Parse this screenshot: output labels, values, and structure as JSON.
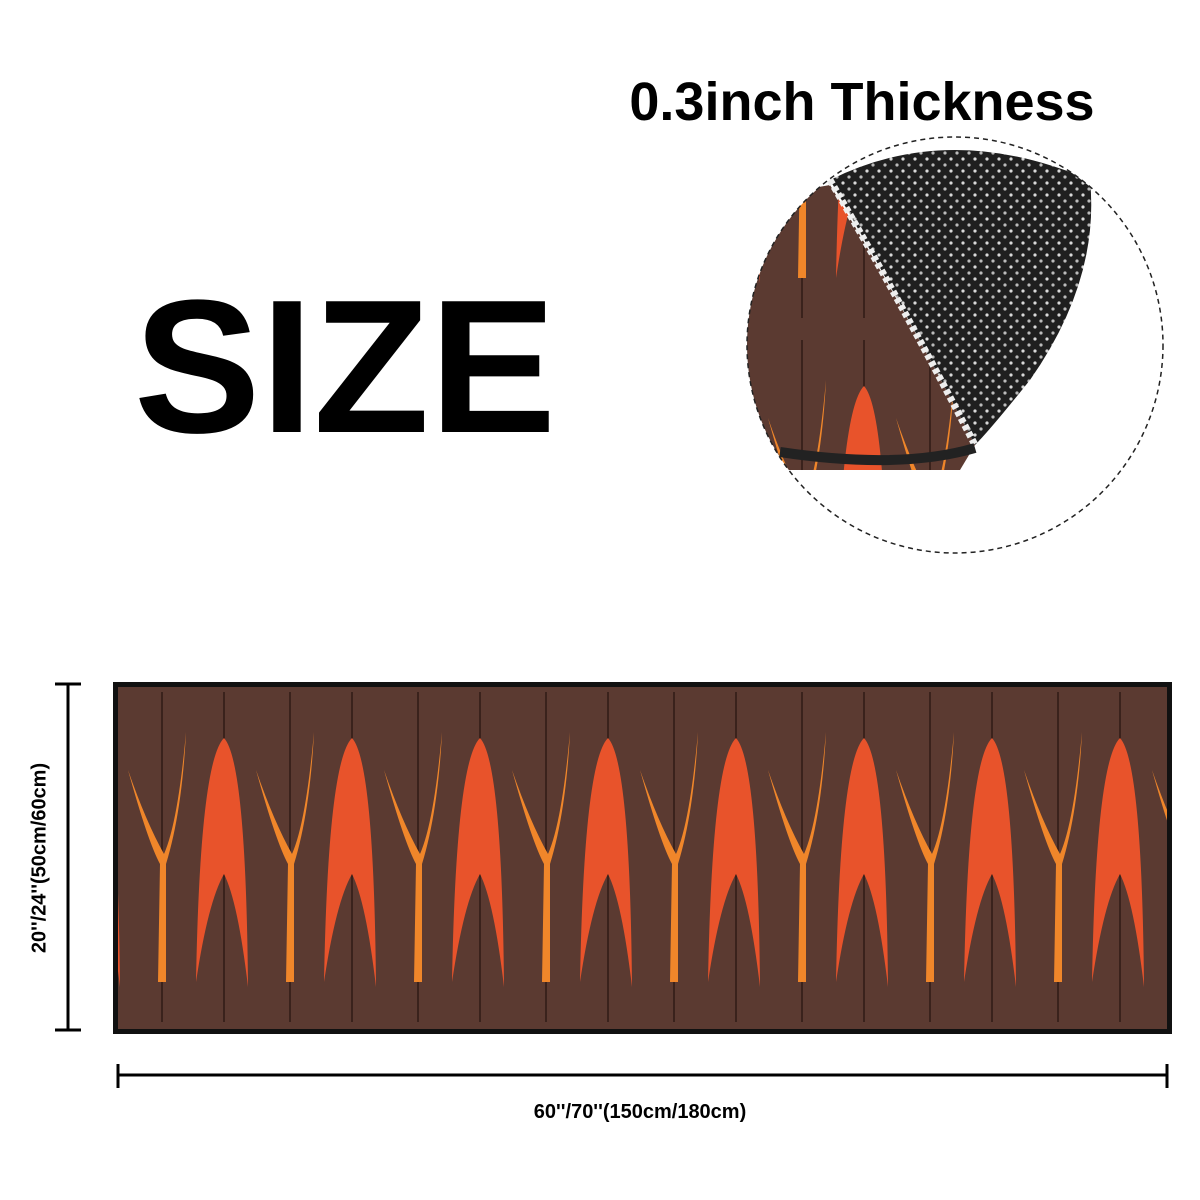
{
  "heading": "SIZE",
  "thickness": "0.3inch Thickness",
  "dimensions": {
    "height": "20''/24''(50cm/60cm)",
    "width": "60''/70''(150cm/180cm)"
  }
}
